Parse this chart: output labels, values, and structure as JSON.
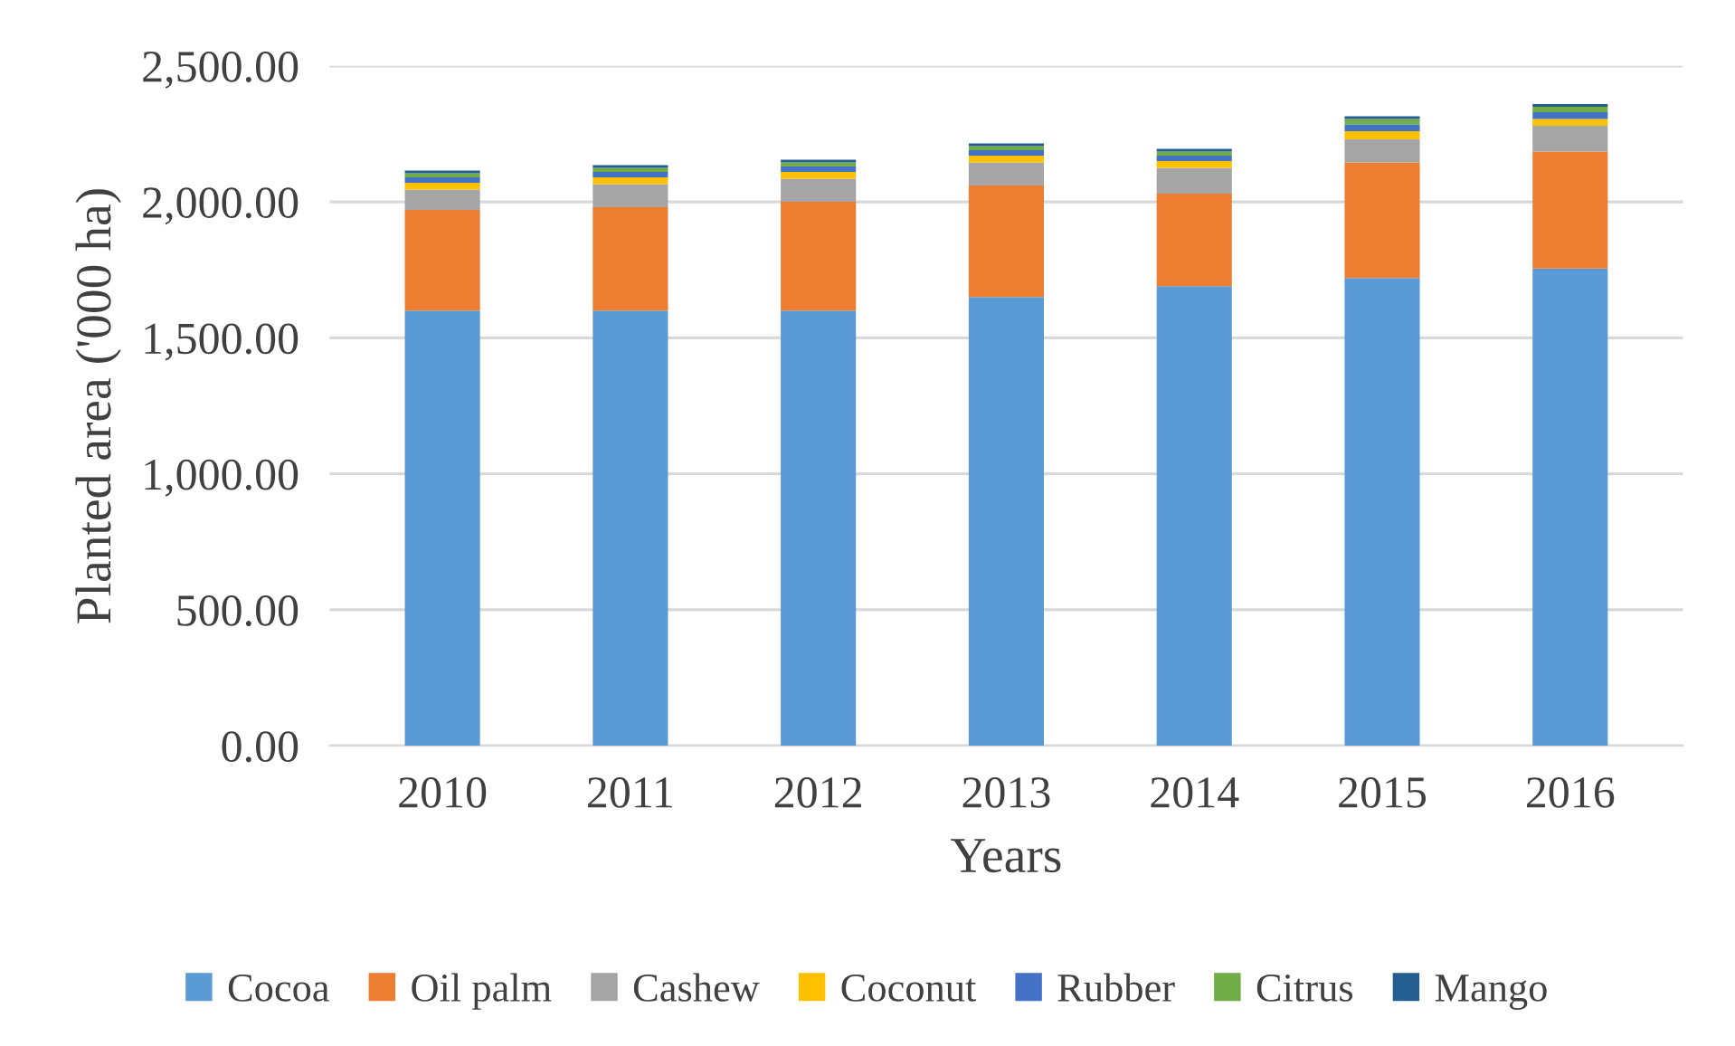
{
  "chart_data": {
    "type": "bar",
    "stacked": true,
    "xlabel": "Years",
    "ylabel": "Planted area ('000 ha)",
    "categories": [
      "2010",
      "2011",
      "2012",
      "2013",
      "2014",
      "2015",
      "2016"
    ],
    "series": [
      {
        "name": "Cocoa",
        "color": "#5b9bd5",
        "values": [
          1600,
          1600,
          1600,
          1650,
          1690,
          1720,
          1755
        ]
      },
      {
        "name": "Oil palm",
        "color": "#ed7d31",
        "values": [
          370,
          380,
          400,
          410,
          340,
          425,
          430
        ]
      },
      {
        "name": "Cashew",
        "color": "#a5a5a5",
        "values": [
          75,
          85,
          85,
          85,
          95,
          85,
          95
        ]
      },
      {
        "name": "Coconut",
        "color": "#ffc000",
        "values": [
          25,
          25,
          25,
          25,
          25,
          30,
          25
        ]
      },
      {
        "name": "Rubber",
        "color": "#4472c4",
        "values": [
          20,
          20,
          20,
          20,
          20,
          25,
          25
        ]
      },
      {
        "name": "Citrus",
        "color": "#70ad47",
        "values": [
          15,
          15,
          15,
          15,
          15,
          20,
          20
        ]
      },
      {
        "name": "Mango",
        "color": "#255e91",
        "values": [
          10,
          10,
          10,
          10,
          10,
          10,
          10
        ]
      }
    ],
    "ylim": [
      0,
      2500
    ],
    "yticks": [
      {
        "value": 0,
        "label": "0.00"
      },
      {
        "value": 500,
        "label": "500.00"
      },
      {
        "value": 1000,
        "label": "1,000.00"
      },
      {
        "value": 1500,
        "label": "1,500.00"
      },
      {
        "value": 2000,
        "label": "2,000.00"
      },
      {
        "value": 2500,
        "label": "2,500.00"
      }
    ],
    "grid": "y",
    "legend": "bottom"
  }
}
